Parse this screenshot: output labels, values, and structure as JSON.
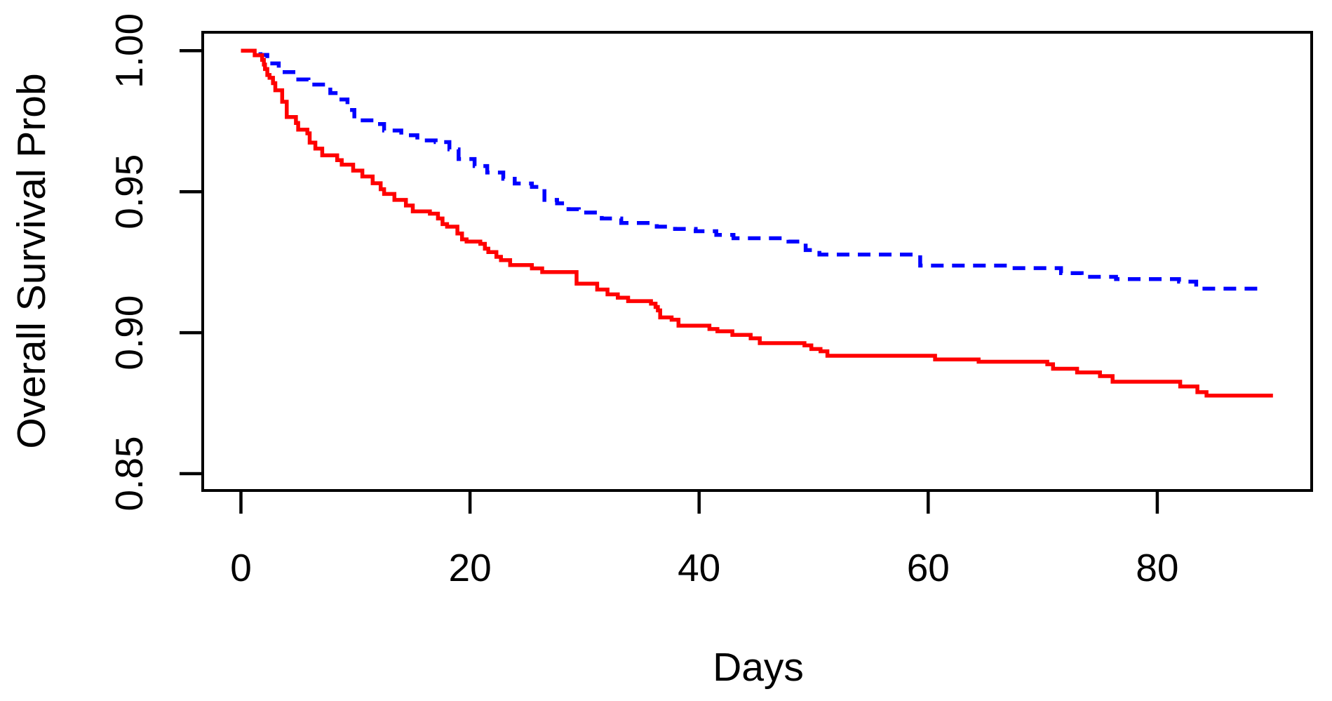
{
  "chart_data": {
    "type": "line",
    "subtype": "kaplan-meier-step-curves",
    "title": "",
    "xlabel": "Days",
    "ylabel": "Overall Survival Prob",
    "grid": false,
    "legend": "none",
    "xlim": [
      -3.6,
      93.6
    ],
    "ylim": [
      0.844,
      1.007
    ],
    "x_ticks": {
      "values": [
        0,
        20,
        40,
        60,
        80
      ],
      "labels": [
        "0",
        "20",
        "40",
        "60",
        "80"
      ]
    },
    "y_ticks": {
      "values": [
        1.0,
        0.95,
        0.9,
        0.85
      ],
      "labels": [
        "1.00",
        "0.95",
        "0.90",
        "0.85"
      ]
    },
    "axis_color": "#000000",
    "background_color": "#ffffff",
    "series": [
      {
        "name": "blue-dashed-group",
        "color": "#0000FF",
        "line_style": "dashed",
        "end_day": 89.4,
        "steps": [
          [
            0,
            1.0
          ],
          [
            1.7,
            0.9985
          ],
          [
            2.3,
            0.9955
          ],
          [
            3.3,
            0.9924
          ],
          [
            4.8,
            0.9898
          ],
          [
            5.9,
            0.988
          ],
          [
            7.8,
            0.985
          ],
          [
            8.5,
            0.9827
          ],
          [
            9.3,
            0.979
          ],
          [
            9.9,
            0.9753
          ],
          [
            11.6,
            0.974
          ],
          [
            12.5,
            0.9717
          ],
          [
            14.0,
            0.97
          ],
          [
            15.4,
            0.9682
          ],
          [
            17.0,
            0.9676
          ],
          [
            18.2,
            0.965
          ],
          [
            19.0,
            0.9616
          ],
          [
            20.4,
            0.9591
          ],
          [
            21.5,
            0.9568
          ],
          [
            22.9,
            0.9546
          ],
          [
            23.9,
            0.9529
          ],
          [
            25.4,
            0.9517
          ],
          [
            26.5,
            0.9471
          ],
          [
            27.6,
            0.9459
          ],
          [
            28.6,
            0.9438
          ],
          [
            29.5,
            0.9426
          ],
          [
            31.5,
            0.9405
          ],
          [
            33.2,
            0.9389
          ],
          [
            36.3,
            0.9376
          ],
          [
            37.9,
            0.9368
          ],
          [
            39.7,
            0.936
          ],
          [
            41.5,
            0.9347
          ],
          [
            43.0,
            0.9335
          ],
          [
            47.8,
            0.9323
          ],
          [
            49.3,
            0.9293
          ],
          [
            50.5,
            0.9277
          ],
          [
            59.3,
            0.9238
          ],
          [
            67.0,
            0.9229
          ],
          [
            71.6,
            0.9211
          ],
          [
            73.4,
            0.9198
          ],
          [
            76.4,
            0.919
          ],
          [
            81.9,
            0.9181
          ],
          [
            83.4,
            0.9156
          ]
        ]
      },
      {
        "name": "red-solid-group",
        "color": "#FF0000",
        "line_style": "solid",
        "end_day": 90.1,
        "steps": [
          [
            0,
            1.0
          ],
          [
            1.2,
            0.9984
          ],
          [
            1.85,
            0.9968
          ],
          [
            2.0,
            0.9951
          ],
          [
            2.1,
            0.9935
          ],
          [
            2.3,
            0.9914
          ],
          [
            2.5,
            0.9904
          ],
          [
            2.8,
            0.9885
          ],
          [
            3.0,
            0.986
          ],
          [
            3.6,
            0.9819
          ],
          [
            4.0,
            0.9765
          ],
          [
            4.8,
            0.9744
          ],
          [
            5.0,
            0.972
          ],
          [
            5.8,
            0.9707
          ],
          [
            6.0,
            0.9674
          ],
          [
            6.5,
            0.9653
          ],
          [
            7.1,
            0.9629
          ],
          [
            8.4,
            0.9612
          ],
          [
            8.8,
            0.9596
          ],
          [
            9.8,
            0.9575
          ],
          [
            10.6,
            0.9554
          ],
          [
            11.5,
            0.953
          ],
          [
            12.2,
            0.9509
          ],
          [
            12.5,
            0.9492
          ],
          [
            13.4,
            0.9471
          ],
          [
            14.4,
            0.9451
          ],
          [
            15.0,
            0.943
          ],
          [
            16.5,
            0.9422
          ],
          [
            17.2,
            0.9405
          ],
          [
            17.6,
            0.9385
          ],
          [
            18.0,
            0.9376
          ],
          [
            18.9,
            0.9352
          ],
          [
            19.3,
            0.9331
          ],
          [
            19.7,
            0.9323
          ],
          [
            20.9,
            0.9315
          ],
          [
            21.3,
            0.9298
          ],
          [
            21.6,
            0.9286
          ],
          [
            22.3,
            0.9269
          ],
          [
            22.7,
            0.9257
          ],
          [
            23.5,
            0.924
          ],
          [
            25.4,
            0.9228
          ],
          [
            26.3,
            0.9215
          ],
          [
            29.3,
            0.9174
          ],
          [
            31.1,
            0.9153
          ],
          [
            32.0,
            0.9136
          ],
          [
            32.9,
            0.9124
          ],
          [
            33.8,
            0.9112
          ],
          [
            35.8,
            0.9103
          ],
          [
            36.2,
            0.9091
          ],
          [
            36.4,
            0.9079
          ],
          [
            36.6,
            0.9054
          ],
          [
            37.6,
            0.9046
          ],
          [
            38.2,
            0.9025
          ],
          [
            40.9,
            0.9013
          ],
          [
            41.6,
            0.9005
          ],
          [
            42.9,
            0.8992
          ],
          [
            44.5,
            0.898
          ],
          [
            45.3,
            0.8963
          ],
          [
            49.2,
            0.8955
          ],
          [
            49.8,
            0.8942
          ],
          [
            50.6,
            0.8934
          ],
          [
            51.2,
            0.8918
          ],
          [
            60.6,
            0.8905
          ],
          [
            64.4,
            0.8897
          ],
          [
            70.4,
            0.8888
          ],
          [
            70.9,
            0.8872
          ],
          [
            73.0,
            0.8859
          ],
          [
            75.0,
            0.8846
          ],
          [
            76.1,
            0.8826
          ],
          [
            82.0,
            0.8809
          ],
          [
            83.5,
            0.8789
          ],
          [
            84.3,
            0.8777
          ]
        ]
      }
    ]
  }
}
